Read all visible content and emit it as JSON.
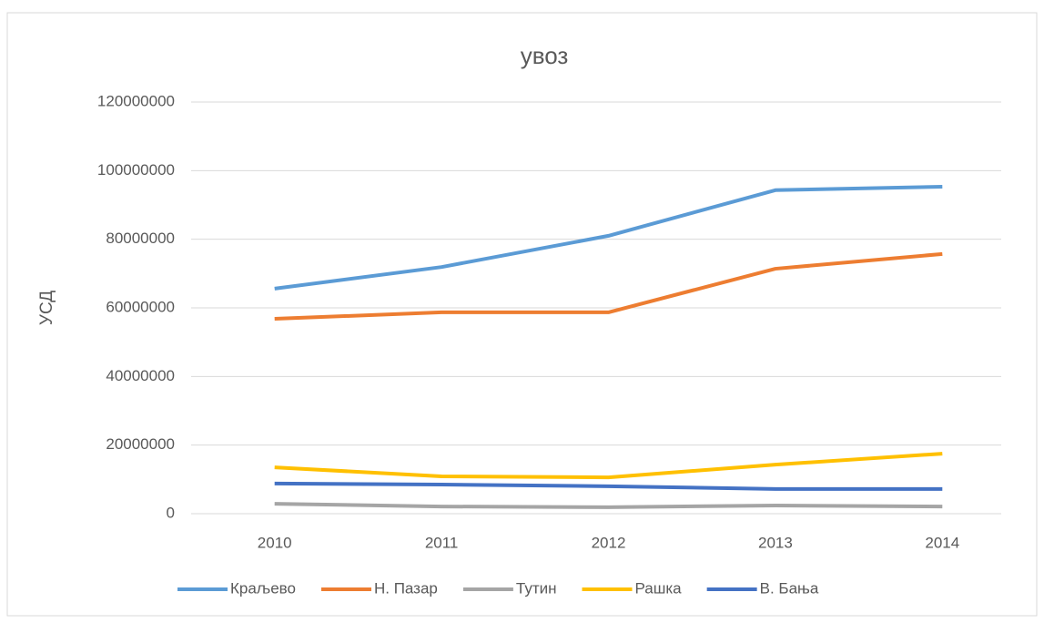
{
  "chart_data": {
    "type": "line",
    "title": "увоз",
    "y_label": "УСД",
    "categories": [
      "2010",
      "2011",
      "2012",
      "2013",
      "2014"
    ],
    "series": [
      {
        "name": "Краљево",
        "color": "#5b9bd5",
        "values": [
          65600000,
          71900000,
          81000000,
          94300000,
          95300000
        ]
      },
      {
        "name": "Н. Пазар",
        "color": "#ed7d31",
        "values": [
          56800000,
          58700000,
          58700000,
          71400000,
          75700000
        ]
      },
      {
        "name": "Тутин",
        "color": "#a5a5a5",
        "values": [
          2900000,
          2100000,
          1900000,
          2400000,
          2100000
        ]
      },
      {
        "name": "Рашка",
        "color": "#ffc000",
        "values": [
          13500000,
          10900000,
          10600000,
          14300000,
          17500000
        ]
      },
      {
        "name": "В. Бања",
        "color": "#4472c4",
        "values": [
          8800000,
          8500000,
          8000000,
          7200000,
          7200000
        ]
      }
    ],
    "ylim": [
      0,
      120000000
    ],
    "yticks": [
      0,
      20000000,
      40000000,
      60000000,
      80000000,
      100000000,
      120000000
    ],
    "grid": true,
    "legend": "bottom"
  }
}
